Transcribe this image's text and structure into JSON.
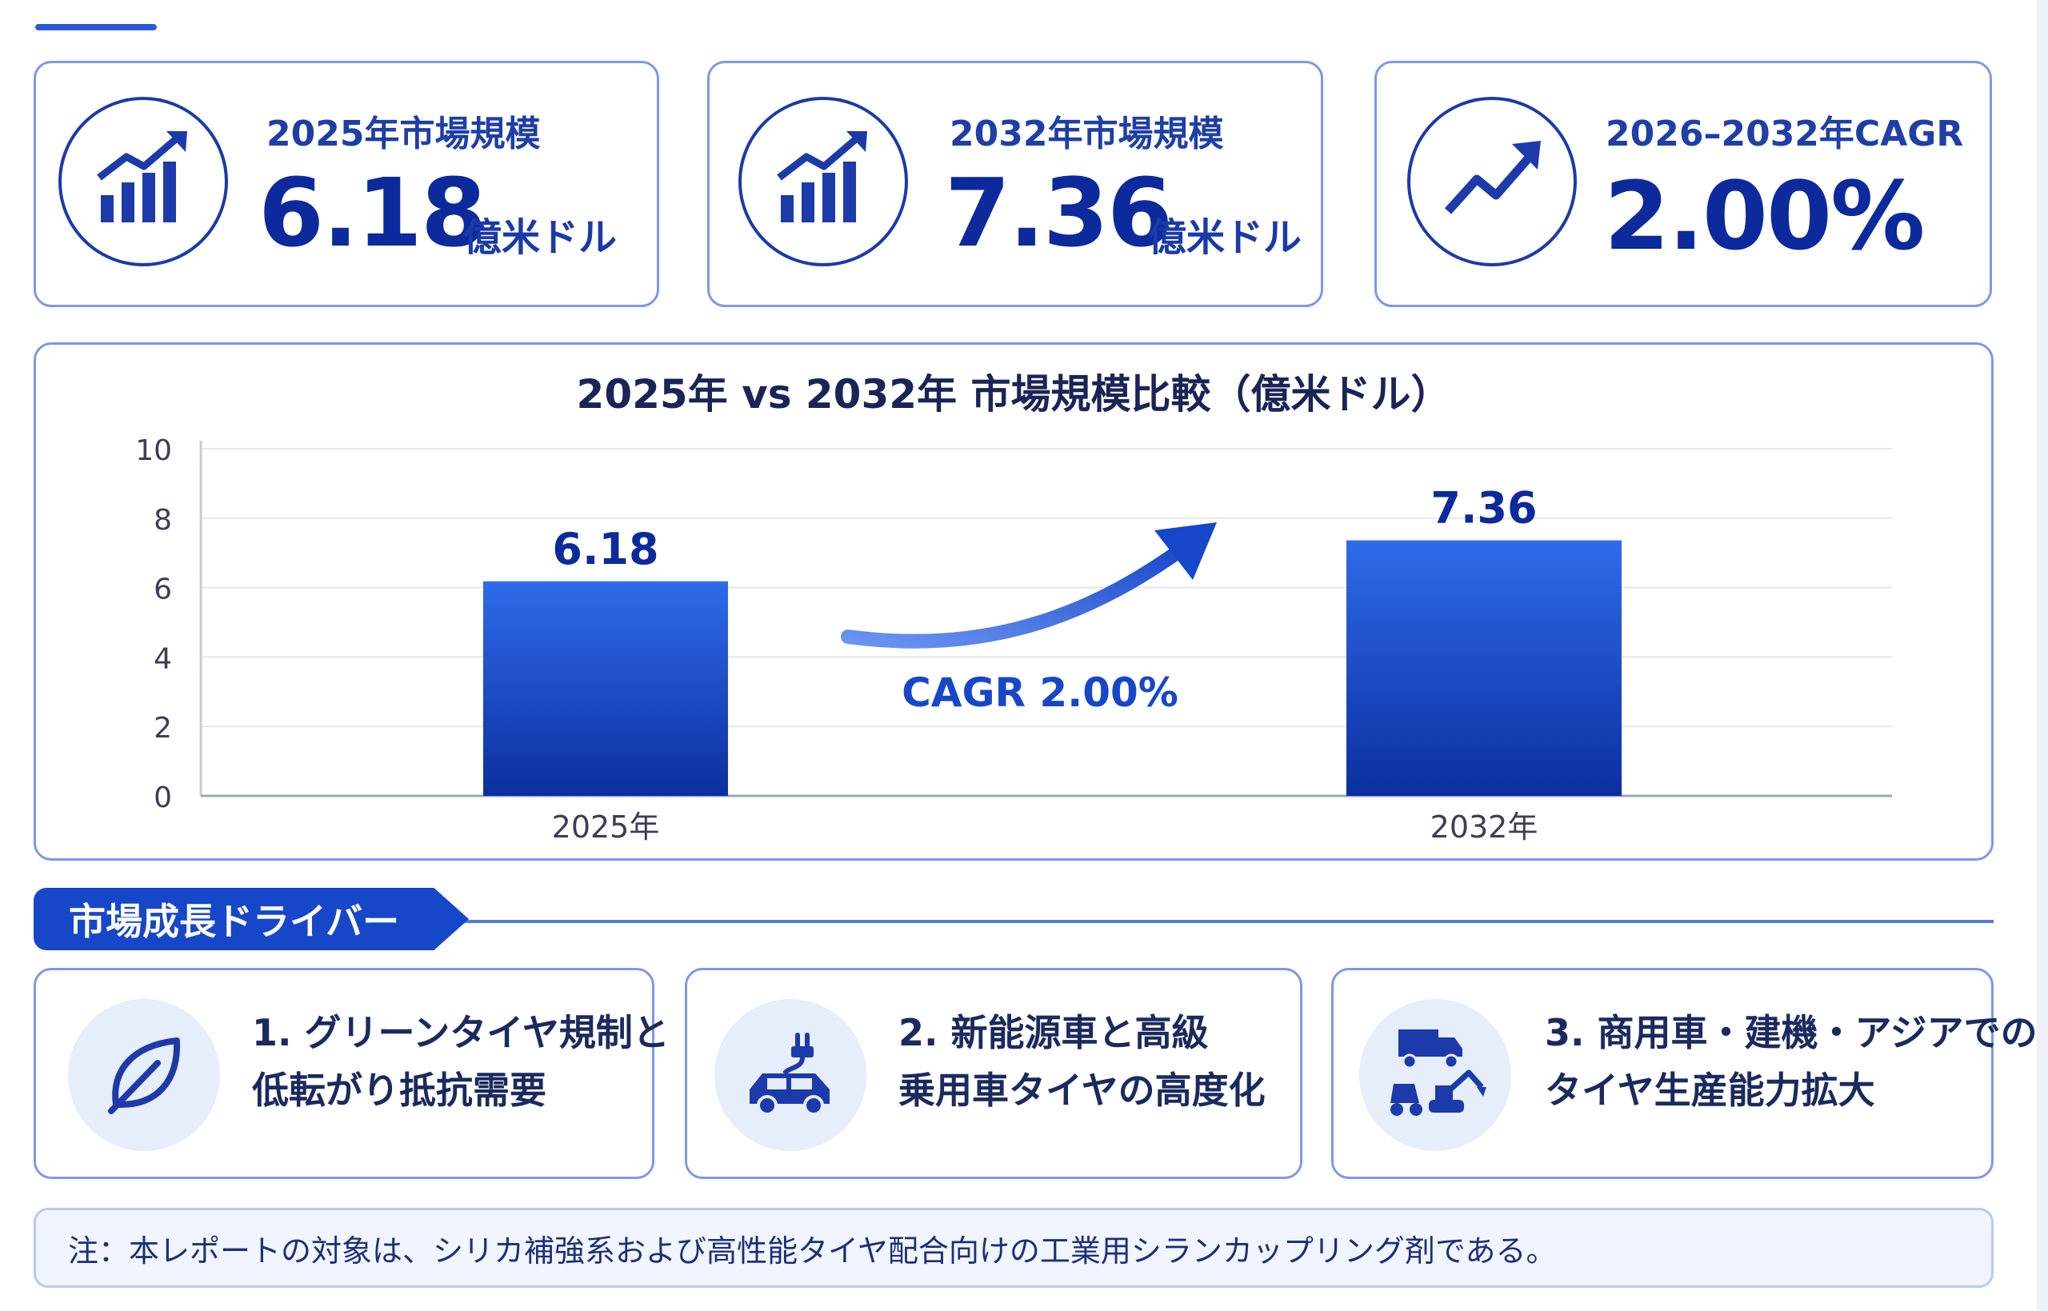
{
  "kpis": [
    {
      "label": "2025年市場規模",
      "value": "6.18",
      "unit": "億米ドル",
      "icon": "bar-chart-up-icon"
    },
    {
      "label": "2032年市場規模",
      "value": "7.36",
      "unit": "億米ドル",
      "icon": "bar-chart-up-icon"
    },
    {
      "label": "2026–2032年CAGR",
      "value": "2.00%",
      "unit": "",
      "icon": "trend-up-arrow-icon"
    }
  ],
  "chart_data": {
    "type": "bar",
    "title": "2025年 vs 2032年 市場規模比較（億米ドル）",
    "categories": [
      "2025年",
      "2032年"
    ],
    "values": [
      6.18,
      7.36
    ],
    "data_labels": [
      "6.18",
      "7.36"
    ],
    "ylim": [
      0,
      10
    ],
    "yticks": [
      0,
      2,
      4,
      6,
      8,
      10
    ],
    "annotation": "CAGR 2.00%",
    "grid": true,
    "colors": {
      "bar_top": "#2f6bea",
      "bar_bottom": "#0b2f9f",
      "label": "#0c2a9c"
    }
  },
  "drivers": {
    "header": "市場成長ドライバー",
    "items": [
      {
        "line1": "1. グリーンタイヤ規制と",
        "line2": "低転がり抵抗需要",
        "icon": "leaf-icon"
      },
      {
        "line1": "2. 新能源車と高級",
        "line2": "乗用車タイヤの高度化",
        "icon": "ev-car-plug-icon"
      },
      {
        "line1": "3. 商用車・建機・アジアでの",
        "line2": "タイヤ生産能力拡大",
        "icon": "truck-excavator-icon"
      }
    ]
  },
  "note": "注：本レポートの対象は、シリカ補強系および高性能タイヤ配合向けの工業用シランカップリング剤である。",
  "colors": {
    "accent": "#1747c9",
    "border": "#7e98e8",
    "primary_text": "#0c2a9c"
  }
}
